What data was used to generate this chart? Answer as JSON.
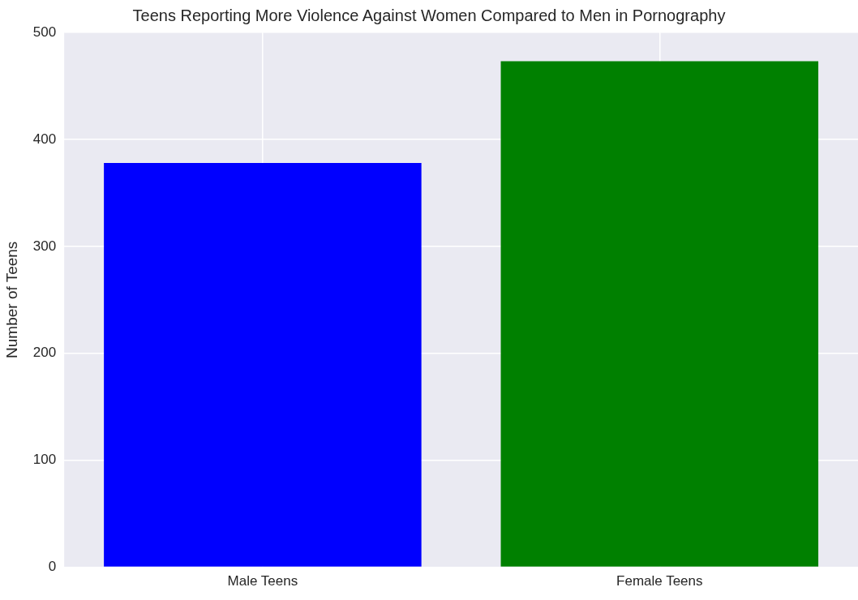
{
  "chart_data": {
    "type": "bar",
    "title": "Teens Reporting More Violence Against Women Compared to Men in Pornography",
    "ylabel": "Number of Teens",
    "categories": [
      "Male Teens",
      "Female Teens"
    ],
    "values": [
      378,
      473
    ],
    "colors": [
      "#0000ff",
      "#008000"
    ],
    "ylim": [
      0,
      500
    ],
    "yticks": [
      0,
      100,
      200,
      300,
      400,
      500
    ],
    "grid": true
  }
}
